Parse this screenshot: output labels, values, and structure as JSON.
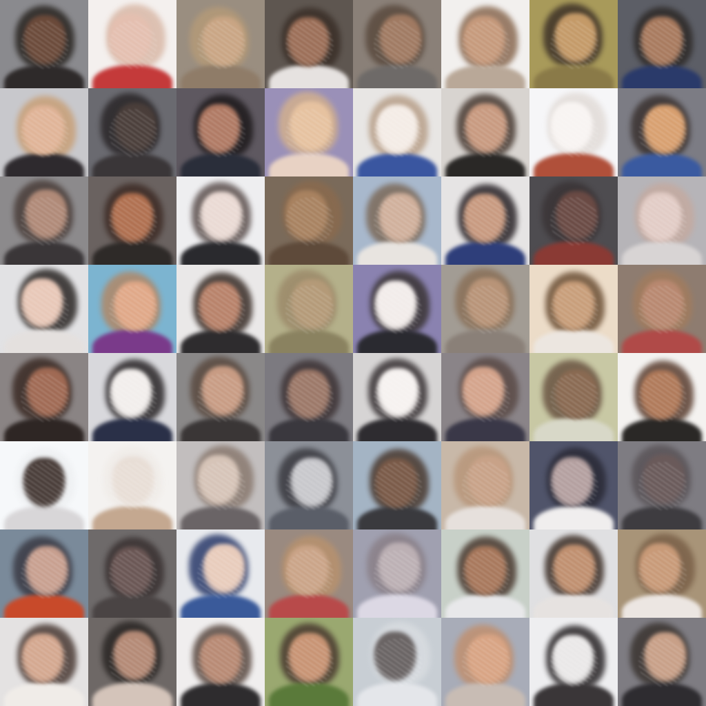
{
  "grid": {
    "rows": 8,
    "cols": 8,
    "tiles": [
      {
        "bg": "#8a8a8e",
        "hair": "#2a2622",
        "face": "#6b4a3a",
        "body": "#2e2a2a"
      },
      {
        "bg": "#f4f0ee",
        "hair": "#d9b9a8",
        "face": "#e4bfb0",
        "body": "#c43a3a"
      },
      {
        "bg": "#9a8e80",
        "hair": "#b49a78",
        "face": "#c9a584",
        "body": "#8f7c68"
      },
      {
        "bg": "#5e5650",
        "hair": "#3a2f28",
        "face": "#9c6f58",
        "body": "#e6e2e0"
      },
      {
        "bg": "#8a8078",
        "hair": "#5a4a3e",
        "face": "#a07a62",
        "body": "#6e6a68"
      },
      {
        "bg": "#f2f0ee",
        "hair": "#8a6a52",
        "face": "#c69a7c",
        "body": "#b9a898"
      },
      {
        "bg": "#a89a5a",
        "hair": "#3e3228",
        "face": "#c49a68",
        "body": "#8a7a48"
      },
      {
        "bg": "#5c5e66",
        "hair": "#2e2a28",
        "face": "#a87a5e",
        "body": "#2a3a6a"
      },
      {
        "bg": "#c8c8cc",
        "hair": "#c8a078",
        "face": "#e0b498",
        "body": "#2e2a2e"
      },
      {
        "bg": "#6a6a70",
        "hair": "#2a2628",
        "face": "#4a3e3a",
        "body": "#3a3638"
      },
      {
        "bg": "#5e5860",
        "hair": "#1e1a1c",
        "face": "#b07a64",
        "body": "#2a2e3a"
      },
      {
        "bg": "#9a90b8",
        "hair": "#d2b08e",
        "face": "#e6c2a0",
        "body": "#e8d2c4"
      },
      {
        "bg": "#e8e6e4",
        "hair": "#b8a08a",
        "face": "#f4ece6",
        "body": "#3a56a0"
      },
      {
        "bg": "#d8d4d0",
        "hair": "#4a3c34",
        "face": "#c89a80",
        "body": "#2a2826"
      },
      {
        "bg": "#f6f6f8",
        "hair": "#e2dcd8",
        "face": "#f8f4f2",
        "body": "#b0503a"
      },
      {
        "bg": "#7c7c84",
        "hair": "#3a3230",
        "face": "#d8a070",
        "body": "#3a5aa0"
      },
      {
        "bg": "#8c8a8c",
        "hair": "#4a3e3a",
        "face": "#b08a78",
        "body": "#3a3638"
      },
      {
        "bg": "#6a6260",
        "hair": "#3e2c26",
        "face": "#b07050",
        "body": "#2e2a28"
      },
      {
        "bg": "#eeeef0",
        "hair": "#5e5250",
        "face": "#eadad4",
        "body": "#2a2a2e"
      },
      {
        "bg": "#7a6a5a",
        "hair": "#8a6a4e",
        "face": "#a88260",
        "body": "#5e4a3a"
      },
      {
        "bg": "#a8b8cc",
        "hair": "#7c6a5a",
        "face": "#d0b09c",
        "body": "#e8e4e0"
      },
      {
        "bg": "#e6e4e4",
        "hair": "#2a2428",
        "face": "#c89a80",
        "body": "#2e3e7a"
      },
      {
        "bg": "#4e4c50",
        "hair": "#3a3436",
        "face": "#6a4a44",
        "body": "#8a3a34"
      },
      {
        "bg": "#b6b4b8",
        "hair": "#c4aaa0",
        "face": "#e2ccc6",
        "body": "#d8d4d4"
      },
      {
        "bg": "#e2e2e4",
        "hair": "#2a2624",
        "face": "#e8c8b8",
        "body": "#e4e0de"
      },
      {
        "bg": "#7cb4d0",
        "hair": "#b08868",
        "face": "#e0a888",
        "body": "#7a3a8a"
      },
      {
        "bg": "#eae8e8",
        "hair": "#3a2e28",
        "face": "#b8826a",
        "body": "#2e2c2e"
      },
      {
        "bg": "#b4b08a",
        "hair": "#9c8a6a",
        "face": "#b49a78",
        "body": "#8a8260"
      },
      {
        "bg": "#8a82b0",
        "hair": "#3a3434",
        "face": "#f2ecea",
        "body": "#2a2a30"
      },
      {
        "bg": "#a29c94",
        "hair": "#8a7058",
        "face": "#b89478",
        "body": "#8a8078"
      },
      {
        "bg": "#ecdcc8",
        "hair": "#6e5238",
        "face": "#c89e7a",
        "body": "#ece6e0"
      },
      {
        "bg": "#8e7c70",
        "hair": "#a27c5e",
        "face": "#b88870",
        "body": "#b04a48"
      },
      {
        "bg": "#8a8484",
        "hair": "#3a2a24",
        "face": "#a06a54",
        "body": "#2e2624"
      },
      {
        "bg": "#d8d8dc",
        "hair": "#2a2628",
        "face": "#f2eeec",
        "body": "#2a3048"
      },
      {
        "bg": "#8a8888",
        "hair": "#5a4a40",
        "face": "#c89c84",
        "body": "#3a3636"
      },
      {
        "bg": "#7c7a80",
        "hair": "#3e3436",
        "face": "#9c7868",
        "body": "#3a383e"
      },
      {
        "bg": "#d6d4d4",
        "hair": "#3a3436",
        "face": "#f6f2f0",
        "body": "#2e2c30"
      },
      {
        "bg": "#8a8488",
        "hair": "#5a4a46",
        "face": "#d4a48c",
        "body": "#3a3848"
      },
      {
        "bg": "#c8c8a4",
        "hair": "#6a5442",
        "face": "#8a6a52",
        "body": "#d8d8c8"
      },
      {
        "bg": "#f4f2f0",
        "hair": "#5a3e30",
        "face": "#b07a5a",
        "body": "#2a2826"
      },
      {
        "bg": "#f6f8fa",
        "hair": "#eef0f2",
        "face": "#4a3e3a",
        "body": "#d8d6d8"
      },
      {
        "bg": "#f4f2f0",
        "hair": "#f0ece8",
        "face": "#e8ded6",
        "body": "#c4a890"
      },
      {
        "bg": "#c2bebe",
        "hair": "#8a7a70",
        "face": "#d6c4b8",
        "body": "#6a6466"
      },
      {
        "bg": "#8c9098",
        "hair": "#3a3a40",
        "face": "#c8c8cc",
        "body": "#5a5e68"
      },
      {
        "bg": "#a4b4c4",
        "hair": "#4a3a30",
        "face": "#7a5a48",
        "body": "#3a3a3e"
      },
      {
        "bg": "#c8b8a8",
        "hair": "#b8967a",
        "face": "#c8a288",
        "body": "#e6e0dc"
      },
      {
        "bg": "#50546a",
        "hair": "#2a2a36",
        "face": "#b4a0a0",
        "body": "#f0eeee"
      },
      {
        "bg": "#7e7c82",
        "hair": "#5a5458",
        "face": "#6a5a5a",
        "body": "#3e3c40"
      },
      {
        "bg": "#7a8a9a",
        "hair": "#3a3a44",
        "face": "#c8a090",
        "body": "#c84a2a"
      },
      {
        "bg": "#6e6a6a",
        "hair": "#3a3232",
        "face": "#6a5654",
        "body": "#4a4444"
      },
      {
        "bg": "#e8eaee",
        "hair": "#2a3a6a",
        "face": "#e8ccbc",
        "body": "#3a5a9a"
      },
      {
        "bg": "#9a8a80",
        "hair": "#b8926e",
        "face": "#caa488",
        "body": "#b84a4a"
      },
      {
        "bg": "#a0a0b0",
        "hair": "#8a8088",
        "face": "#bcb0b4",
        "body": "#dcd8e4"
      },
      {
        "bg": "#c8d0c8",
        "hair": "#4a3a30",
        "face": "#a8785c",
        "body": "#e8e8ea"
      },
      {
        "bg": "#e0e0e2",
        "hair": "#3e3028",
        "face": "#c09070",
        "body": "#e6e2e0"
      },
      {
        "bg": "#a89478",
        "hair": "#7a6048",
        "face": "#c89a78",
        "body": "#ece6e2"
      },
      {
        "bg": "#e4e2e2",
        "hair": "#4a3a34",
        "face": "#d4a890",
        "body": "#f0ece8"
      },
      {
        "bg": "#6e6866",
        "hair": "#2a2624",
        "face": "#b48a76",
        "body": "#d4c4ba"
      },
      {
        "bg": "#f0eeee",
        "hair": "#5a4a42",
        "face": "#b88a74",
        "body": "#2e2c2e"
      },
      {
        "bg": "#9aa870",
        "hair": "#4a3a30",
        "face": "#c89474",
        "body": "#5a7a3a"
      },
      {
        "bg": "#c8ced4",
        "hair": "#d8dce0",
        "face": "#6a6464",
        "body": "#e4e6ea"
      },
      {
        "bg": "#a8acb8",
        "hair": "#c09070",
        "face": "#d8a484",
        "body": "#c8bcb4"
      },
      {
        "bg": "#eeeef0",
        "hair": "#2a2628",
        "face": "#eae8e8",
        "body": "#3a3638"
      },
      {
        "bg": "#7e7c82",
        "hair": "#3a3430",
        "face": "#c8a088",
        "body": "#2e2c30"
      }
    ]
  }
}
